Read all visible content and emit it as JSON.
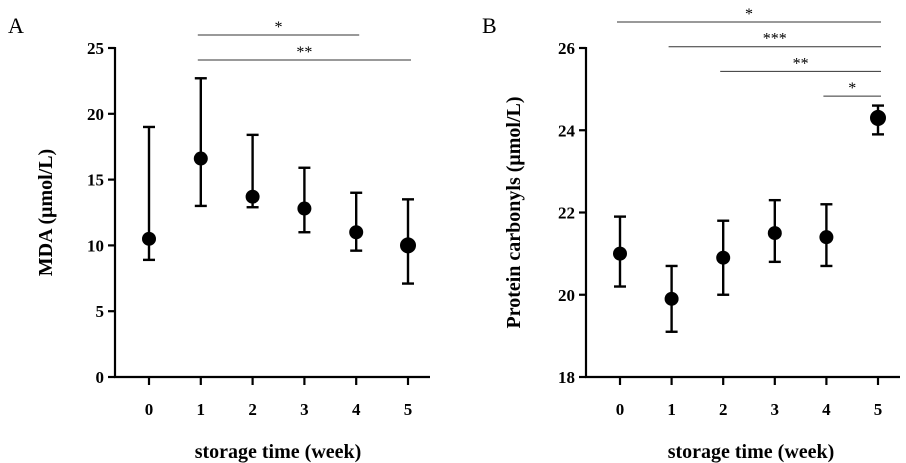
{
  "chart_data": [
    {
      "panel": "A",
      "type": "scatter",
      "title": "",
      "xlabel": "storage time (week)",
      "ylabel": "MDA (μmol/L)",
      "categories": [
        "0",
        "1",
        "2",
        "3",
        "4",
        "5"
      ],
      "ylim": [
        0,
        25
      ],
      "yticks": [
        "0",
        "5",
        "10",
        "15",
        "20",
        "25"
      ],
      "series": [
        {
          "values": [
            10.5,
            16.6,
            13.7,
            12.8,
            11.0,
            10.0
          ],
          "err_low": [
            8.9,
            13.0,
            12.9,
            11.0,
            9.6,
            7.1
          ],
          "err_high": [
            19.0,
            22.7,
            18.4,
            15.9,
            14.0,
            13.5
          ]
        }
      ],
      "significance": [
        {
          "from": "1",
          "to": "4",
          "label": "*"
        },
        {
          "from": "1",
          "to": "5",
          "label": "**"
        }
      ],
      "grid": false,
      "legend": "none"
    },
    {
      "panel": "B",
      "type": "scatter",
      "title": "",
      "xlabel": "storage time (week)",
      "ylabel": "Protein carbonyls (μmol/L)",
      "categories": [
        "0",
        "1",
        "2",
        "3",
        "4",
        "5"
      ],
      "ylim": [
        18,
        26
      ],
      "yticks": [
        "18",
        "20",
        "22",
        "24",
        "26"
      ],
      "series": [
        {
          "values": [
            21.0,
            19.9,
            20.9,
            21.5,
            21.4,
            24.3
          ],
          "err_low": [
            20.2,
            19.1,
            20.0,
            20.8,
            20.7,
            23.9
          ],
          "err_high": [
            21.9,
            20.7,
            21.8,
            22.3,
            22.2,
            24.6
          ]
        }
      ],
      "significance": [
        {
          "from": "0",
          "to": "5",
          "label": "*"
        },
        {
          "from": "1",
          "to": "5",
          "label": "***"
        },
        {
          "from": "2",
          "to": "5",
          "label": "**"
        },
        {
          "from": "4",
          "to": "5",
          "label": "*"
        }
      ],
      "grid": false,
      "legend": "none"
    }
  ]
}
